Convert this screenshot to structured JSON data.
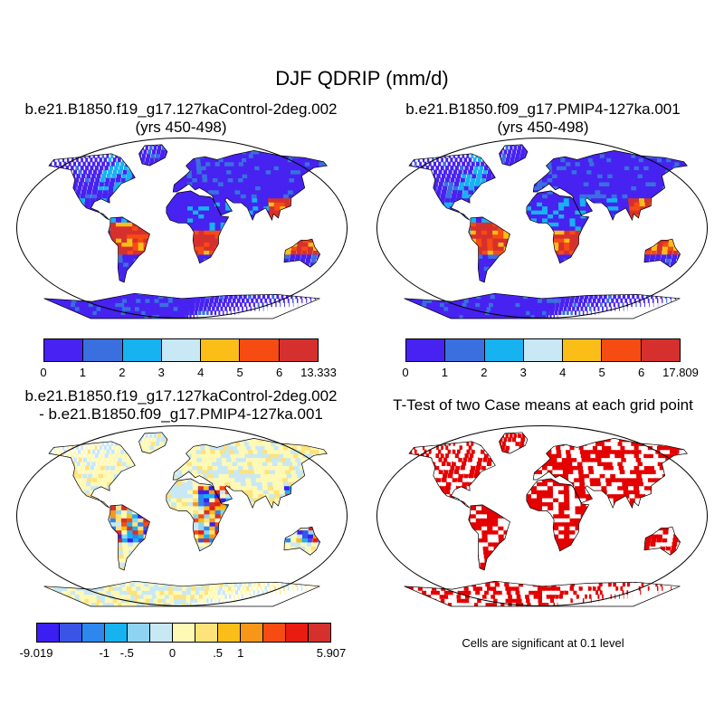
{
  "figure": {
    "main_title": "DJF QDRIP (mm/d)",
    "panels": [
      {
        "id": "control",
        "title_lines": [
          "b.e21.B1850.f19_g17.127kaControl-2deg.002",
          "(yrs 450-498)"
        ],
        "colorbar": {
          "tick_labels": [
            "0",
            "1",
            "2",
            "3",
            "4",
            "5",
            "6",
            "13.333"
          ],
          "colors": [
            "#4722f0",
            "#3a6fe0",
            "#17b2f0",
            "#c8e8f5",
            "#fbbd18",
            "#f64b12",
            "#d6302e"
          ]
        }
      },
      {
        "id": "pmip4",
        "title_lines": [
          "b.e21.B1850.f09_g17.PMIP4-127ka.001",
          "(yrs 450-498)"
        ],
        "colorbar": {
          "tick_labels": [
            "0",
            "1",
            "2",
            "3",
            "4",
            "5",
            "6",
            "17.809"
          ],
          "colors": [
            "#4722f0",
            "#3a6fe0",
            "#17b2f0",
            "#c8e8f5",
            "#fbbd18",
            "#f64b12",
            "#d6302e"
          ]
        }
      },
      {
        "id": "difference",
        "title_lines": [
          "b.e21.B1850.f19_g17.127kaControl-2deg.002",
          "- b.e21.B1850.f09_g17.PMIP4-127ka.001"
        ],
        "colorbar": {
          "tick_labels": [
            "-9.019",
            "-1",
            "-.5",
            "0",
            ".5",
            "1",
            "5.907"
          ],
          "colors": [
            "#3b1ef2",
            "#3a55e6",
            "#2e86ef",
            "#17b2f0",
            "#8fd3f2",
            "#c8e8f5",
            "#fff9b6",
            "#ffe27a",
            "#fbbd18",
            "#f8961a",
            "#f64b12",
            "#e81c10",
            "#d6302e"
          ]
        }
      },
      {
        "id": "ttest",
        "title_lines": [
          "T-Test of two Case means at each grid point"
        ],
        "note": "Cells are significant at 0.1 level",
        "significant_color": "#e50000"
      }
    ]
  }
}
